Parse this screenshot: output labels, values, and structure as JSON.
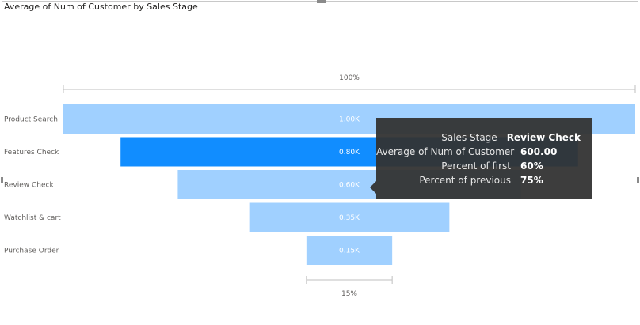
{
  "visual": {
    "title": "Average of Num of Customer by Sales Stage"
  },
  "chart_data": {
    "type": "funnel",
    "title": "Average of Num of Customer by Sales Stage",
    "categories": [
      "Product Search",
      "Features Check",
      "Review Check",
      "Watchlist & cart",
      "Purchase Order"
    ],
    "values": [
      1000,
      800,
      600,
      350,
      150
    ],
    "data_labels": [
      "1.00K",
      "0.80K",
      "0.60K",
      "0.35K",
      "0.15K"
    ],
    "top_percent_label": "100%",
    "bottom_percent_label": "15%",
    "highlighted_category": "Features Check",
    "colors": {
      "bar": "#a0d0ff",
      "highlight": "#118dff",
      "label": "#ffffff",
      "axis": "#bfbfbf"
    }
  },
  "tooltip": {
    "rows": [
      {
        "label": "Sales Stage",
        "value": "Review Check"
      },
      {
        "label": "Average of Num of Customer",
        "value": "600.00"
      },
      {
        "label": "Percent of first",
        "value": "60%"
      },
      {
        "label": "Percent of previous",
        "value": "75%"
      }
    ]
  }
}
